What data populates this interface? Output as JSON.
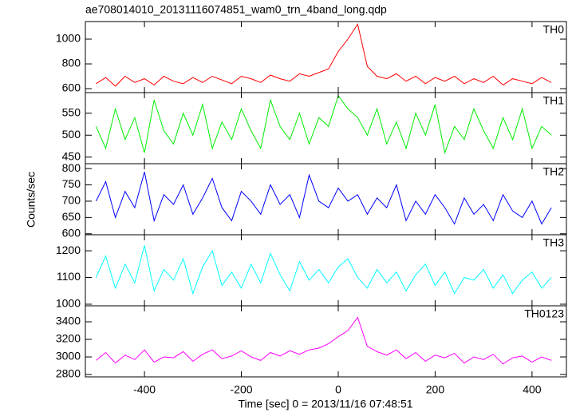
{
  "chart_data": {
    "type": "line",
    "title": "ae708014010_20131116074851_wam0_trn_4band_long.qdp",
    "x_label": "Time [sec] 0 = 2013/11/16 07:48:51",
    "y_label": "Counts/sec",
    "xlim": [
      -522,
      471
    ],
    "xticks": [
      -400,
      -200,
      0,
      200,
      400
    ],
    "x": [
      -500,
      -480,
      -460,
      -440,
      -420,
      -400,
      -380,
      -360,
      -340,
      -320,
      -300,
      -280,
      -260,
      -240,
      -220,
      -200,
      -180,
      -160,
      -140,
      -120,
      -100,
      -80,
      -60,
      -40,
      -20,
      0,
      20,
      40,
      60,
      80,
      100,
      120,
      140,
      160,
      180,
      200,
      220,
      240,
      260,
      280,
      300,
      320,
      340,
      360,
      380,
      400,
      420,
      440
    ],
    "panels": [
      {
        "name": "TH0",
        "color": "#ff0000",
        "ylim": [
          568,
          1142
        ],
        "yticks": [
          600,
          800,
          1000
        ],
        "values": [
          640,
          690,
          620,
          700,
          650,
          680,
          630,
          700,
          660,
          640,
          690,
          650,
          700,
          670,
          640,
          700,
          680,
          650,
          710,
          680,
          660,
          720,
          700,
          730,
          760,
          900,
          1000,
          1120,
          780,
          700,
          680,
          720,
          660,
          700,
          640,
          690,
          660,
          700,
          640,
          680,
          650,
          700,
          630,
          680,
          660,
          640,
          690,
          650
        ]
      },
      {
        "name": "TH1",
        "color": "#00ee00",
        "ylim": [
          435,
          597
        ],
        "yticks": [
          450,
          500,
          550
        ],
        "values": [
          520,
          470,
          560,
          490,
          540,
          460,
          580,
          510,
          480,
          550,
          500,
          570,
          470,
          530,
          490,
          560,
          510,
          470,
          580,
          520,
          490,
          550,
          480,
          540,
          520,
          590,
          560,
          540,
          500,
          560,
          480,
          530,
          470,
          550,
          500,
          570,
          460,
          520,
          490,
          560,
          510,
          470,
          540,
          490,
          560,
          470,
          520,
          500
        ]
      },
      {
        "name": "TH2",
        "color": "#0000ff",
        "ylim": [
          597,
          815
        ],
        "yticks": [
          600,
          650,
          700,
          750,
          800
        ],
        "values": [
          700,
          760,
          650,
          730,
          680,
          790,
          640,
          720,
          690,
          750,
          660,
          710,
          770,
          680,
          640,
          730,
          700,
          660,
          750,
          690,
          720,
          650,
          780,
          700,
          680,
          740,
          700,
          720,
          660,
          710,
          680,
          750,
          640,
          700,
          660,
          720,
          680,
          630,
          710,
          660,
          690,
          640,
          720,
          670,
          650,
          700,
          630,
          680
        ]
      },
      {
        "name": "TH3",
        "color": "#00ffff",
        "ylim": [
          994,
          1260
        ],
        "yticks": [
          1000,
          1100,
          1200
        ],
        "values": [
          1100,
          1180,
          1060,
          1150,
          1080,
          1220,
          1050,
          1130,
          1090,
          1170,
          1040,
          1140,
          1200,
          1070,
          1120,
          1060,
          1150,
          1080,
          1190,
          1110,
          1050,
          1160,
          1090,
          1130,
          1080,
          1140,
          1170,
          1100,
          1060,
          1130,
          1080,
          1120,
          1050,
          1110,
          1150,
          1070,
          1120,
          1040,
          1100,
          1090,
          1130,
          1060,
          1110,
          1040,
          1090,
          1120,
          1060,
          1100
        ]
      },
      {
        "name": "TH0123",
        "color": "#ff00ff",
        "ylim": [
          2773,
          3582
        ],
        "yticks": [
          2800,
          3000,
          3200,
          3400
        ],
        "values": [
          2960,
          3050,
          2930,
          3020,
          2970,
          3080,
          2940,
          3000,
          2990,
          3060,
          2950,
          3030,
          3080,
          2980,
          3010,
          3070,
          3000,
          2960,
          3050,
          3010,
          3070,
          3030,
          3080,
          3100,
          3150,
          3230,
          3300,
          3450,
          3120,
          3060,
          3020,
          3080,
          2980,
          3050,
          2950,
          3020,
          2990,
          3040,
          2930,
          3000,
          2970,
          3030,
          2920,
          2990,
          3010,
          2940,
          3000,
          2960
        ]
      }
    ]
  }
}
